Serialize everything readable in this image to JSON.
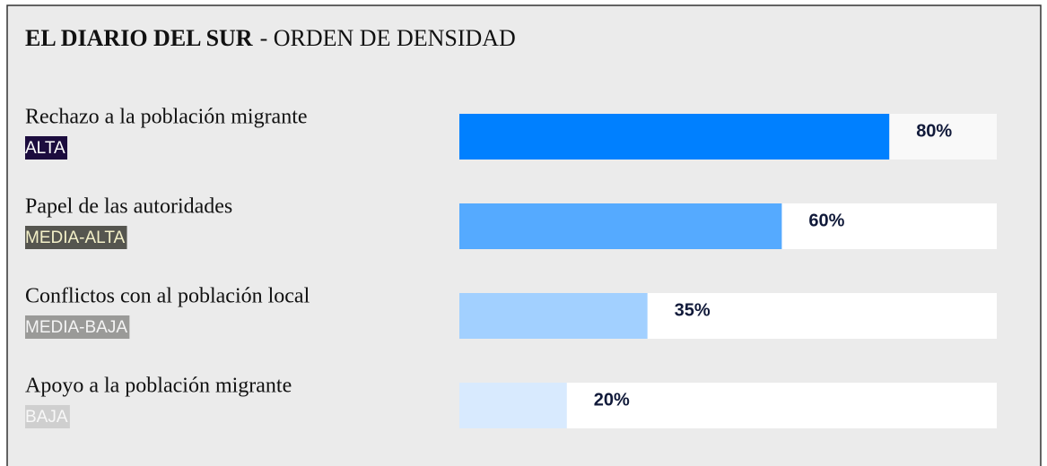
{
  "chart_data": {
    "type": "bar",
    "orientation": "horizontal",
    "title": "EL DIARIO DEL SUR",
    "subtitle": "- ORDEN DE DENSIDAD",
    "categories": [
      "Rechazo a la población migrante",
      "Papel de las autoridades",
      "Conflictos con al población local",
      "Apoyo a la población migrante"
    ],
    "levels": [
      "ALTA",
      "MEDIA-ALTA",
      "MEDIA-BAJA",
      "BAJA"
    ],
    "level_colors": [
      "#1c0c3e",
      "#55554f",
      "#9a9a98",
      "#cfcfcf"
    ],
    "level_text_colors": [
      "#ffffff",
      "#f3f0c8",
      "#f4f4f4",
      "#f8f8f8"
    ],
    "values": [
      80,
      60,
      35,
      20
    ],
    "value_labels": [
      "80%",
      "60%",
      "35%",
      "20%"
    ],
    "colors": [
      "#0080ff",
      "#55aaff",
      "#a2d0ff",
      "#d8eafe"
    ],
    "xlim": [
      0,
      100
    ]
  }
}
